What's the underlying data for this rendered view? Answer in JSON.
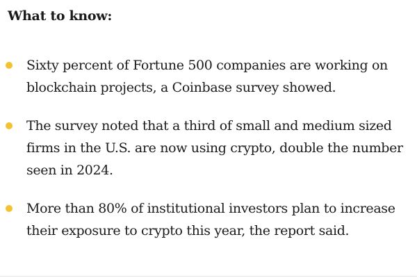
{
  "heading": "What to know:",
  "bullet_color": "#f2c230",
  "bullets": [
    {
      "text": "Sixty percent of Fortune 500 companies are working on blockchain projects, a Coinbase survey showed."
    },
    {
      "text": "The survey noted that a third of small and medium sized firms in the U.S. are now using crypto, double the number seen in 2024."
    },
    {
      "text": "More than 80% of institutional investors plan to increase their exposure to crypto this year, the report said."
    }
  ]
}
